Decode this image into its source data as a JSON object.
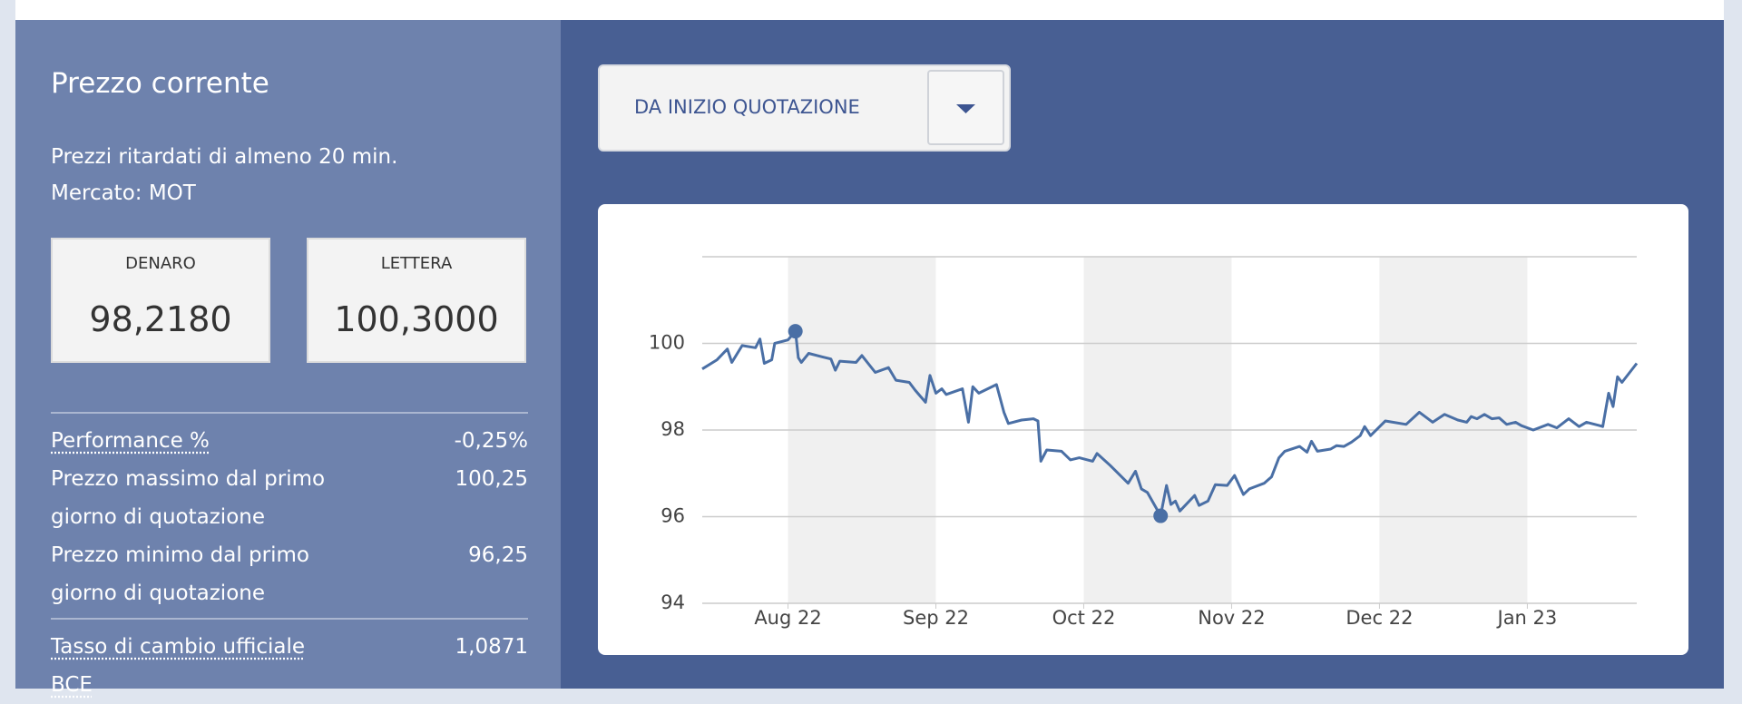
{
  "panel": {
    "title": "Prezzo corrente",
    "note": "Prezzi ritardati di almeno 20 min.",
    "market": "Mercato: MOT",
    "quotes": [
      {
        "label": "DENARO",
        "value": "98,2180"
      },
      {
        "label": "LETTERA",
        "value": "100,3000"
      }
    ],
    "stats": [
      {
        "label": "Performance %",
        "value": "-0,25%"
      },
      {
        "label": "Prezzo massimo dal primo giorno di quotazione",
        "value": "100,25"
      },
      {
        "label": "Prezzo minimo dal primo giorno di quotazione",
        "value": "96,25"
      },
      {
        "label": "Tasso di cambio ufficiale BCE",
        "value": "1,0871"
      }
    ]
  },
  "dropdown": {
    "label": "DA INIZIO QUOTAZIONE"
  },
  "chart_data": {
    "type": "line",
    "color": "#4a6fa5",
    "x": [
      -0.58,
      -0.48,
      -0.41,
      -0.38,
      -0.31,
      -0.22,
      -0.19,
      -0.16,
      -0.11,
      -0.09,
      0,
      0.05,
      0.07,
      0.09,
      0.14,
      0.23,
      0.29,
      0.32,
      0.35,
      0.46,
      0.5,
      0.59,
      0.68,
      0.73,
      0.82,
      0.86,
      0.93,
      0.96,
      1.0,
      1.04,
      1.07,
      1.18,
      1.22,
      1.25,
      1.29,
      1.41,
      1.46,
      1.49,
      1.58,
      1.66,
      1.69,
      1.71,
      1.75,
      1.85,
      1.91,
      1.97,
      2.06,
      2.09,
      2.18,
      2.3,
      2.35,
      2.39,
      2.43,
      2.52,
      2.56,
      2.59,
      2.62,
      2.65,
      2.75,
      2.78,
      2.84,
      2.89,
      2.97,
      3.02,
      3.08,
      3.12,
      3.22,
      3.27,
      3.32,
      3.36,
      3.46,
      3.51,
      3.54,
      3.58,
      3.67,
      3.71,
      3.76,
      3.81,
      3.87,
      3.9,
      3.94,
      4.04,
      4.18,
      4.27,
      4.36,
      4.44,
      4.53,
      4.59,
      4.62,
      4.66,
      4.71,
      4.76,
      4.81,
      4.86,
      4.92,
      4.96,
      5.04,
      5.14,
      5.2,
      5.28,
      5.35,
      5.4,
      5.49,
      5.51,
      5.55,
      5.58,
      5.61,
      5.64,
      5.74
    ],
    "values": [
      99.41,
      99.62,
      99.87,
      99.56,
      99.95,
      99.9,
      100.1,
      99.54,
      99.62,
      100.0,
      100.08,
      100.28,
      99.67,
      99.56,
      99.77,
      99.69,
      99.64,
      99.38,
      99.59,
      99.56,
      99.72,
      99.33,
      99.44,
      99.15,
      99.1,
      98.92,
      98.64,
      99.26,
      98.85,
      98.95,
      98.82,
      98.95,
      98.18,
      99.0,
      98.85,
      99.05,
      98.41,
      98.15,
      98.23,
      98.26,
      98.21,
      97.28,
      97.54,
      97.51,
      97.31,
      97.36,
      97.28,
      97.46,
      97.18,
      96.77,
      97.05,
      96.64,
      96.56,
      96.02,
      96.72,
      96.28,
      96.36,
      96.13,
      96.49,
      96.26,
      96.36,
      96.74,
      96.72,
      96.95,
      96.51,
      96.64,
      96.77,
      96.92,
      97.36,
      97.51,
      97.62,
      97.49,
      97.74,
      97.51,
      97.56,
      97.64,
      97.62,
      97.72,
      97.87,
      98.08,
      97.87,
      98.21,
      98.13,
      98.41,
      98.18,
      98.36,
      98.23,
      98.18,
      98.31,
      98.26,
      98.36,
      98.26,
      98.28,
      98.13,
      98.18,
      98.1,
      98.0,
      98.13,
      98.05,
      98.26,
      98.08,
      98.18,
      98.1,
      98.08,
      98.85,
      98.54,
      99.23,
      99.1,
      99.54
    ],
    "xlim": [
      -0.58,
      5.74
    ],
    "xticks": [
      {
        "value": 0,
        "label": "Aug 22"
      },
      {
        "value": 1,
        "label": "Sep 22"
      },
      {
        "value": 2,
        "label": "Oct 22"
      },
      {
        "value": 3,
        "label": "Nov 22"
      },
      {
        "value": 4,
        "label": "Dec 22"
      },
      {
        "value": 5,
        "label": "Jan 23"
      }
    ],
    "ylim": [
      94,
      102
    ],
    "yticks": [
      94,
      96,
      98,
      100
    ],
    "grid": true,
    "alternate_bands": true
  }
}
